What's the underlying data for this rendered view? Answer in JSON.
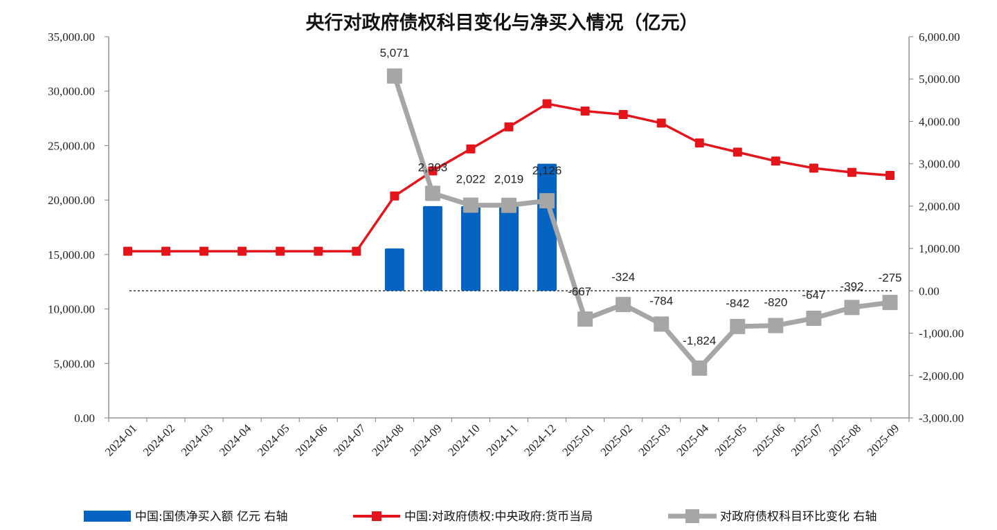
{
  "chart_data": {
    "type": "bar+line",
    "title": "央行对政府债权科目变化与净买入情况（亿元）",
    "categories": [
      "2024-01",
      "2024-02",
      "2024-03",
      "2024-04",
      "2024-05",
      "2024-06",
      "2024-07",
      "2024-08",
      "2024-09",
      "2024-10",
      "2024-11",
      "2024-12",
      "2025-01",
      "2025-02",
      "2025-03",
      "2025-04",
      "2025-05",
      "2025-06",
      "2025-07",
      "2025-08",
      "2025-09"
    ],
    "left_axis": {
      "min": 0,
      "max": 35000,
      "step": 5000,
      "ticks": [
        "0.00",
        "5,000.00",
        "10,000.00",
        "15,000.00",
        "20,000.00",
        "25,000.00",
        "30,000.00",
        "35,000.00"
      ]
    },
    "right_axis": {
      "min": -3000,
      "max": 6000,
      "step": 1000,
      "ticks": [
        "-3,000.00",
        "-2,000.00",
        "-1,000.00",
        "0.00",
        "1,000.00",
        "2,000.00",
        "3,000.00",
        "4,000.00",
        "5,000.00",
        "6,000.00"
      ]
    },
    "series": [
      {
        "name": "中国:国债净买入额 亿元 右轴",
        "type": "bar",
        "axis": "right",
        "color": "#0563C1",
        "values": [
          null,
          null,
          null,
          null,
          null,
          null,
          null,
          1000,
          2000,
          2000,
          2000,
          3000,
          null,
          null,
          null,
          null,
          null,
          null,
          null,
          null,
          null
        ]
      },
      {
        "name": "中国:对政府债权:中央政府:货币当局",
        "type": "line",
        "axis": "left",
        "color": "#E3151B",
        "values": [
          15300,
          15300,
          15300,
          15300,
          15300,
          15300,
          15300,
          20371,
          22674,
          24696,
          26715,
          28841,
          28174,
          27850,
          27066,
          25242,
          24400,
          23580,
          22933,
          22541,
          22266
        ]
      },
      {
        "name": "对政府债权科目环比变化 右轴",
        "type": "line",
        "axis": "right",
        "color": "#A6A6A6",
        "values": [
          null,
          null,
          null,
          null,
          null,
          null,
          null,
          5071,
          2303,
          2022,
          2019,
          2126,
          -667,
          -324,
          -784,
          -1824,
          -842,
          -820,
          -647,
          -392,
          -275
        ],
        "labels": [
          null,
          null,
          null,
          null,
          null,
          null,
          null,
          "5,071",
          "2,303",
          "2,022",
          "2,019",
          "2,126",
          "-667",
          "-324",
          "-784",
          "-1,824",
          "-842",
          "-820",
          "-647",
          "-392",
          "-275"
        ]
      }
    ],
    "legend_position": "bottom",
    "grid": false,
    "zero_line": "dashed"
  }
}
